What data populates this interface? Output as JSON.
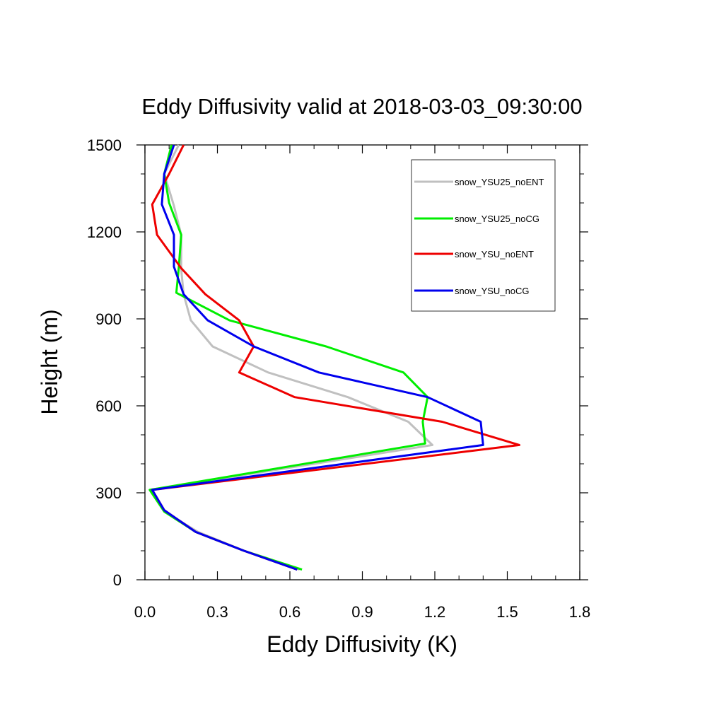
{
  "chart_data": {
    "type": "line",
    "title": "Eddy Diffusivity valid at 2018-03-03_09:30:00",
    "xlabel": "Eddy Diffusivity (K)",
    "ylabel": "Height (m)",
    "xlim": [
      0,
      1.8
    ],
    "ylim": [
      0,
      1500
    ],
    "x_ticks": [
      "0.0",
      "0.3",
      "0.6",
      "0.9",
      "1.2",
      "1.5",
      "1.8"
    ],
    "y_ticks": [
      "0",
      "300",
      "600",
      "900",
      "1200",
      "1500"
    ],
    "x_tick_values": [
      0,
      0.3,
      0.6,
      0.9,
      1.2,
      1.5,
      1.8
    ],
    "y_tick_values": [
      0,
      300,
      600,
      900,
      1200,
      1500
    ],
    "legend_position": "top-right",
    "grid": false,
    "series": [
      {
        "name": "snow_YSU25_noENT",
        "color": "#c0c0c0",
        "points": [
          [
            0.64,
            35
          ],
          [
            0.41,
            100
          ],
          [
            0.22,
            165
          ],
          [
            0.08,
            235
          ],
          [
            0.02,
            310
          ],
          [
            1.19,
            465
          ],
          [
            1.09,
            545
          ],
          [
            0.84,
            630
          ],
          [
            0.51,
            715
          ],
          [
            0.28,
            805
          ],
          [
            0.19,
            895
          ],
          [
            0.16,
            985
          ],
          [
            0.15,
            1070
          ],
          [
            0.15,
            1190
          ],
          [
            0.12,
            1290
          ],
          [
            0.08,
            1400
          ],
          [
            0.14,
            1500
          ]
        ]
      },
      {
        "name": "snow_YSU25_noCG",
        "color": "#00ee00",
        "points": [
          [
            0.65,
            35
          ],
          [
            0.41,
            100
          ],
          [
            0.21,
            165
          ],
          [
            0.08,
            235
          ],
          [
            0.02,
            310
          ],
          [
            1.16,
            470
          ],
          [
            1.15,
            545
          ],
          [
            1.17,
            630
          ],
          [
            1.07,
            715
          ],
          [
            0.75,
            805
          ],
          [
            0.35,
            895
          ],
          [
            0.13,
            990
          ],
          [
            0.14,
            1075
          ],
          [
            0.15,
            1190
          ],
          [
            0.1,
            1300
          ],
          [
            0.08,
            1400
          ],
          [
            0.11,
            1500
          ]
        ]
      },
      {
        "name": "snow_YSU_noENT",
        "color": "#ee0000",
        "points": [
          [
            0.63,
            35
          ],
          [
            0.41,
            100
          ],
          [
            0.21,
            165
          ],
          [
            0.08,
            240
          ],
          [
            0.03,
            310
          ],
          [
            1.55,
            465
          ],
          [
            1.23,
            545
          ],
          [
            0.62,
            630
          ],
          [
            0.39,
            715
          ],
          [
            0.45,
            805
          ],
          [
            0.39,
            895
          ],
          [
            0.25,
            985
          ],
          [
            0.15,
            1075
          ],
          [
            0.05,
            1190
          ],
          [
            0.03,
            1295
          ],
          [
            0.1,
            1400
          ],
          [
            0.16,
            1500
          ]
        ]
      },
      {
        "name": "snow_YSU_noCG",
        "color": "#0000ee",
        "points": [
          [
            0.63,
            35
          ],
          [
            0.41,
            100
          ],
          [
            0.21,
            165
          ],
          [
            0.08,
            240
          ],
          [
            0.03,
            310
          ],
          [
            1.4,
            465
          ],
          [
            1.39,
            545
          ],
          [
            1.17,
            630
          ],
          [
            0.72,
            715
          ],
          [
            0.45,
            805
          ],
          [
            0.26,
            895
          ],
          [
            0.16,
            985
          ],
          [
            0.12,
            1080
          ],
          [
            0.12,
            1190
          ],
          [
            0.07,
            1295
          ],
          [
            0.08,
            1400
          ],
          [
            0.12,
            1500
          ]
        ]
      }
    ]
  }
}
